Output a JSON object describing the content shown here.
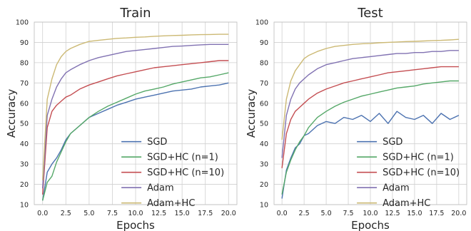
{
  "chart_data": [
    {
      "type": "line",
      "title": "Train",
      "xlabel": "Epochs",
      "ylabel": "Accuracy",
      "xlim": [
        -0.9,
        20.9
      ],
      "ylim": [
        10,
        100
      ],
      "xticks": [
        "0.0",
        "2.5",
        "5.0",
        "7.5",
        "10.0",
        "12.5",
        "15.0",
        "17.5",
        "20.0"
      ],
      "yticks": [
        "10",
        "20",
        "30",
        "40",
        "50",
        "60",
        "70",
        "80",
        "90",
        "100"
      ],
      "grid": true,
      "legend_position": "lower-right",
      "x": [
        0,
        0.5,
        1,
        1.5,
        2,
        2.5,
        3,
        4,
        5,
        6,
        7,
        8,
        9,
        10,
        11,
        12,
        13,
        14,
        15,
        16,
        17,
        18,
        19,
        20
      ],
      "series": [
        {
          "name": "SGD",
          "color": "#4c72b0",
          "values": [
            12,
            26,
            30,
            33,
            37,
            42,
            45,
            49,
            53,
            55,
            57,
            59,
            60.5,
            62,
            63,
            64,
            65,
            66,
            66.5,
            67,
            68,
            68.5,
            69,
            70
          ]
        },
        {
          "name": "SGD+HC (n=1)",
          "color": "#55a868",
          "values": [
            12,
            21,
            24,
            31,
            36,
            41,
            45,
            49,
            53,
            56,
            58.5,
            60.5,
            62.5,
            64.5,
            66,
            67,
            68,
            69.5,
            70.5,
            71.5,
            72.5,
            73,
            74,
            75
          ]
        },
        {
          "name": "SGD+HC (n=10)",
          "color": "#c44e52",
          "values": [
            15,
            48,
            56,
            59,
            61,
            63,
            64,
            67,
            69,
            70.5,
            72,
            73.5,
            74.5,
            75.5,
            76.5,
            77.5,
            78,
            78.5,
            79,
            79.5,
            80,
            80.5,
            81,
            81
          ]
        },
        {
          "name": "Adam",
          "color": "#8172b2",
          "values": [
            18,
            54,
            62,
            68,
            72,
            75,
            76.5,
            79,
            81,
            82.5,
            83.5,
            84.5,
            85.5,
            86,
            86.5,
            87,
            87.5,
            88,
            88.2,
            88.5,
            88.8,
            89,
            89,
            89
          ]
        },
        {
          "name": "Adam+HC",
          "color": "#ccb974",
          "values": [
            22,
            62,
            72,
            79,
            83,
            85.5,
            87,
            89,
            90.5,
            91,
            91.5,
            92,
            92.2,
            92.5,
            92.7,
            93,
            93.2,
            93.4,
            93.5,
            93.7,
            93.8,
            93.9,
            94,
            94
          ]
        }
      ]
    },
    {
      "type": "line",
      "title": "Test",
      "xlabel": "Epochs",
      "ylabel": "Accuracy",
      "xlim": [
        -0.9,
        20.9
      ],
      "ylim": [
        10,
        100
      ],
      "xticks": [
        "0.0",
        "2.5",
        "5.0",
        "7.5",
        "10.0",
        "12.5",
        "15.0",
        "17.5",
        "20.0"
      ],
      "yticks": [
        "10",
        "20",
        "30",
        "40",
        "50",
        "60",
        "70",
        "80",
        "90",
        "100"
      ],
      "grid": true,
      "legend_position": "lower-right",
      "x": [
        0,
        0.5,
        1,
        1.5,
        2,
        2.5,
        3,
        4,
        5,
        6,
        7,
        8,
        9,
        10,
        11,
        12,
        13,
        14,
        15,
        16,
        17,
        18,
        19,
        20
      ],
      "series": [
        {
          "name": "SGD",
          "color": "#4c72b0",
          "values": [
            13,
            27,
            33,
            38,
            40,
            44,
            45,
            49,
            51,
            50,
            53,
            52,
            54,
            51,
            55,
            50,
            56,
            53,
            52,
            54,
            50,
            55,
            52,
            54
          ]
        },
        {
          "name": "SGD+HC (n=1)",
          "color": "#55a868",
          "values": [
            15,
            26,
            32,
            37,
            41,
            44,
            48,
            53,
            56,
            58.5,
            60.5,
            62,
            63.5,
            64.5,
            65.5,
            66.5,
            67.5,
            68,
            68.5,
            69.5,
            70,
            70.5,
            71,
            71
          ]
        },
        {
          "name": "SGD+HC (n=10)",
          "color": "#c44e52",
          "values": [
            28,
            45,
            52,
            56,
            58,
            60,
            62,
            65,
            67,
            68.5,
            70,
            71,
            72,
            73,
            74,
            75,
            75.5,
            76,
            76.5,
            77,
            77.5,
            78,
            78,
            78
          ]
        },
        {
          "name": "Adam",
          "color": "#8172b2",
          "values": [
            33,
            54,
            62,
            67,
            70,
            72,
            74,
            77,
            79,
            80,
            81,
            82,
            82.5,
            83,
            83.5,
            84,
            84.5,
            84.5,
            85,
            85,
            85.5,
            85.5,
            86,
            86
          ]
        },
        {
          "name": "Adam+HC",
          "color": "#ccb974",
          "values": [
            42,
            62,
            71,
            76,
            79,
            82,
            83.5,
            85.5,
            87,
            88,
            88.5,
            89,
            89.3,
            89.5,
            89.8,
            90,
            90.2,
            90.4,
            90.5,
            90.7,
            90.9,
            91,
            91.2,
            91.5
          ]
        }
      ]
    }
  ]
}
